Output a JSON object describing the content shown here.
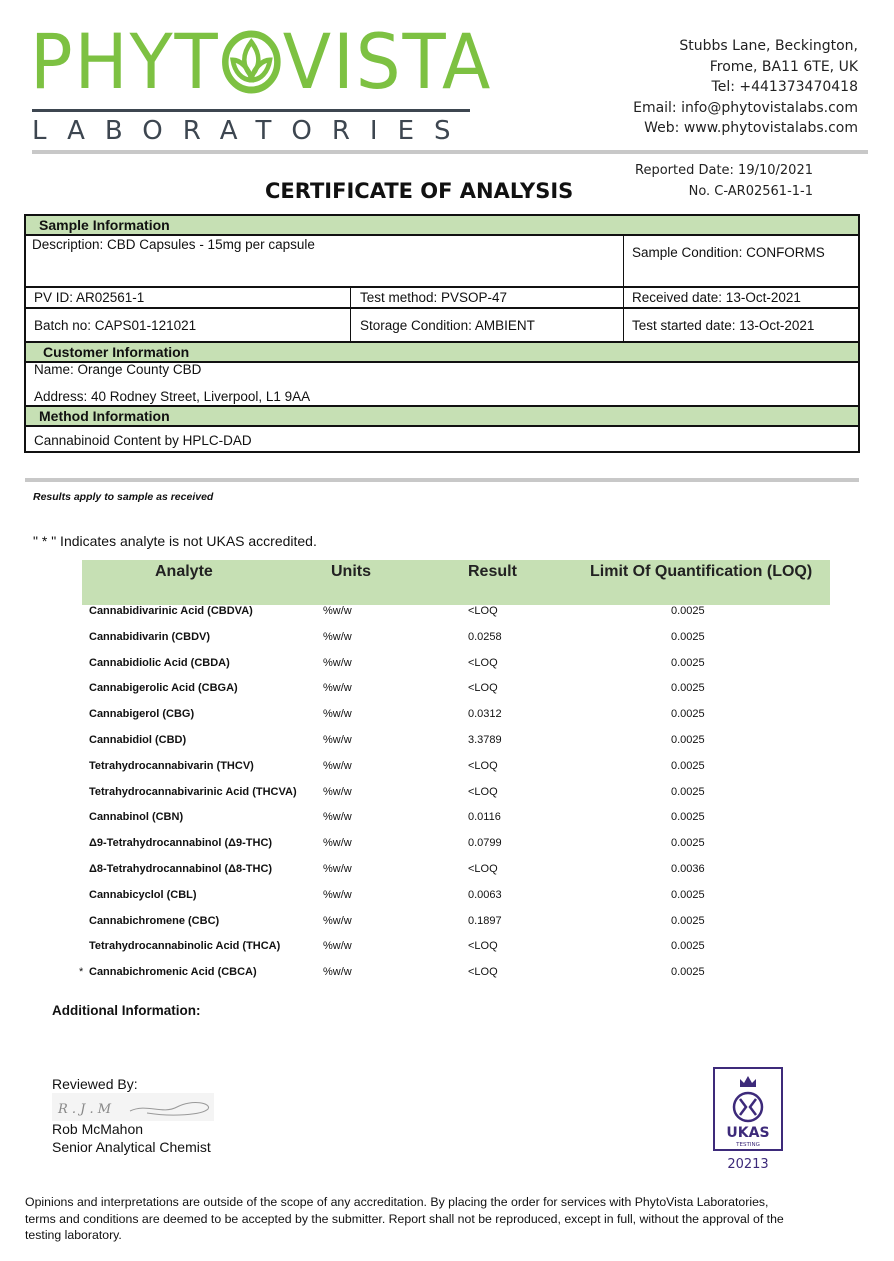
{
  "logo": {
    "name": "PHYTOVISTA",
    "sub": "LABORATORIES",
    "color": "#7dc142"
  },
  "address": [
    "Stubbs Lane, Beckington,",
    "Frome, BA11 6TE, UK",
    "Tel: +441373470418",
    "Email: info@phytovistalabs.com",
    "Web: www.phytovistalabs.com"
  ],
  "reported_date": "Reported Date: 19/10/2021",
  "cert_no": "No. C-AR02561-1-1",
  "title": "CERTIFICATE OF ANALYSIS",
  "sample": {
    "header": "Sample Information",
    "description": "Description: CBD Capsules - 15mg per capsule",
    "condition": "Sample Condition: CONFORMS",
    "pv_id": "PV ID: AR02561-1",
    "test_method": "Test method: PVSOP-47",
    "received": "Received date: 13-Oct-2021",
    "batch": "Batch no: CAPS01-121021",
    "storage": "Storage Condition: AMBIENT",
    "test_started": "Test started date: 13-Oct-2021"
  },
  "customer": {
    "header": "Customer Information",
    "name": "Name:   Orange County CBD",
    "address": "Address:   40 Rodney Street, Liverpool, L1 9AA"
  },
  "method": {
    "header": "Method Information",
    "text": "Cannabinoid Content by HPLC-DAD"
  },
  "results_note": "Results apply to sample as received",
  "ukas_note": "\" * \" Indicates analyte is not UKAS accredited.",
  "table": {
    "headers": [
      "Analyte",
      "Units",
      "Result",
      "Limit Of Quantification (LOQ)"
    ],
    "header_color": "#c6e0b4",
    "rows": [
      {
        "mark": "",
        "analyte": "Cannabidivarinic Acid (CBDVA)",
        "units": "%w/w",
        "result": "<LOQ",
        "loq": "0.0025"
      },
      {
        "mark": "",
        "analyte": "Cannabidivarin (CBDV)",
        "units": "%w/w",
        "result": "0.0258",
        "loq": "0.0025"
      },
      {
        "mark": "",
        "analyte": "Cannabidiolic Acid (CBDA)",
        "units": "%w/w",
        "result": "<LOQ",
        "loq": "0.0025"
      },
      {
        "mark": "",
        "analyte": "Cannabigerolic Acid (CBGA)",
        "units": "%w/w",
        "result": "<LOQ",
        "loq": "0.0025"
      },
      {
        "mark": "",
        "analyte": "Cannabigerol (CBG)",
        "units": "%w/w",
        "result": "0.0312",
        "loq": "0.0025"
      },
      {
        "mark": "",
        "analyte": "Cannabidiol (CBD)",
        "units": "%w/w",
        "result": "3.3789",
        "loq": "0.0025"
      },
      {
        "mark": "",
        "analyte": "Tetrahydrocannabivarin (THCV)",
        "units": "%w/w",
        "result": "<LOQ",
        "loq": "0.0025"
      },
      {
        "mark": "",
        "analyte": "Tetrahydrocannabivarinic Acid (THCVA)",
        "units": "%w/w",
        "result": "<LOQ",
        "loq": "0.0025"
      },
      {
        "mark": "",
        "analyte": "Cannabinol (CBN)",
        "units": "%w/w",
        "result": "0.0116",
        "loq": "0.0025"
      },
      {
        "mark": "",
        "analyte": "Δ9-Tetrahydrocannabinol (Δ9-THC)",
        "units": "%w/w",
        "result": "0.0799",
        "loq": "0.0025"
      },
      {
        "mark": "",
        "analyte": "Δ8-Tetrahydrocannabinol (Δ8-THC)",
        "units": "%w/w",
        "result": "<LOQ",
        "loq": "0.0036"
      },
      {
        "mark": "",
        "analyte": "Cannabicyclol (CBL)",
        "units": "%w/w",
        "result": "0.0063",
        "loq": "0.0025"
      },
      {
        "mark": "",
        "analyte": "Cannabichromene (CBC)",
        "units": "%w/w",
        "result": "0.1897",
        "loq": "0.0025"
      },
      {
        "mark": "",
        "analyte": "Tetrahydrocannabinolic Acid (THCA)",
        "units": "%w/w",
        "result": "<LOQ",
        "loq": "0.0025"
      },
      {
        "mark": "*",
        "analyte": "Cannabichromenic Acid (CBCA)",
        "units": "%w/w",
        "result": "<LOQ",
        "loq": "0.0025"
      }
    ]
  },
  "additional_info": "Additional Information:",
  "review": {
    "label": "Reviewed By:",
    "signature": "R. J. Mc",
    "name": "Rob McMahon",
    "role": "Senior Analytical Chemist"
  },
  "ukas_logo": {
    "text": "UKAS",
    "sub": "TESTING",
    "number": "20213",
    "color": "#3d2a7a"
  },
  "footer": "Opinions and interpretations are outside of the scope of any accreditation. By placing the order for services with PhytoVista Laboratories, terms and conditions are deemed to be accepted by the submitter. Report shall not be reproduced, except in full, without the approval of the testing laboratory."
}
